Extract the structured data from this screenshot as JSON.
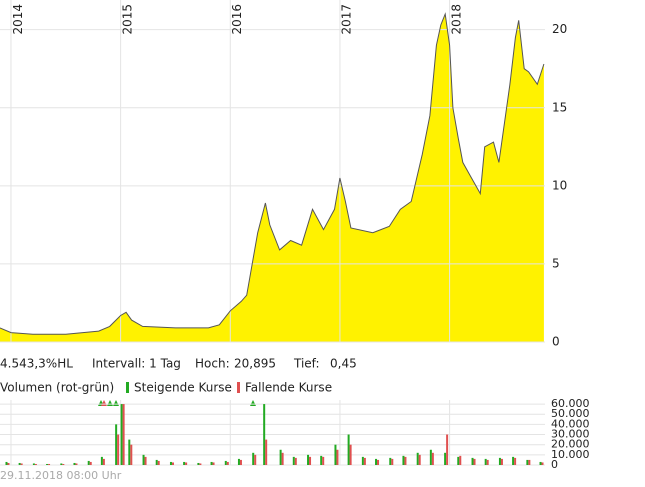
{
  "chart_data": [
    {
      "type": "area",
      "x": [
        2013.9,
        2014.0,
        2014.2,
        2014.5,
        2014.8,
        2014.9,
        2015.0,
        2015.05,
        2015.1,
        2015.2,
        2015.5,
        2015.8,
        2015.9,
        2016.0,
        2016.1,
        2016.15,
        2016.2,
        2016.25,
        2016.32,
        2016.36,
        2016.45,
        2016.55,
        2016.65,
        2016.75,
        2016.85,
        2016.95,
        2017.0,
        2017.05,
        2017.1,
        2017.3,
        2017.45,
        2017.55,
        2017.65,
        2017.75,
        2017.82,
        2017.88,
        2017.92,
        2017.96,
        2018.0,
        2018.03,
        2018.08,
        2018.12,
        2018.2,
        2018.28,
        2018.32,
        2018.4,
        2018.45,
        2018.5,
        2018.55,
        2018.6,
        2018.63,
        2018.68,
        2018.72,
        2018.8,
        2018.86
      ],
      "values": [
        0.9,
        0.6,
        0.5,
        0.5,
        0.7,
        1.0,
        1.7,
        1.9,
        1.4,
        1.0,
        0.9,
        0.9,
        1.1,
        2.0,
        2.6,
        3.0,
        5.0,
        7.0,
        8.9,
        7.5,
        5.9,
        6.5,
        6.2,
        8.5,
        7.2,
        8.5,
        10.5,
        9.0,
        7.3,
        7.0,
        7.4,
        8.5,
        9.0,
        12.0,
        14.5,
        19.0,
        20.3,
        21.0,
        19.0,
        15.0,
        13.0,
        11.5,
        10.5,
        9.5,
        12.5,
        12.8,
        11.5,
        14.0,
        16.5,
        19.5,
        20.6,
        17.5,
        17.3,
        16.5,
        17.8
      ],
      "color": "#fff200",
      "line_color": "#555555",
      "xlim": [
        2013.9,
        2018.87
      ],
      "xticks": [
        2014,
        2015,
        2016,
        2017,
        2018
      ],
      "ylim": [
        0,
        21.9
      ],
      "yticks": [
        0,
        5,
        10,
        15,
        20
      ],
      "grid": true,
      "stats": [
        "4.543,3%HL",
        "Intervall: 1 Tag",
        "Hoch:",
        "20,895",
        "Tief:",
        "0,45"
      ]
    },
    {
      "type": "bar",
      "title": "Volumen (rot-grün)",
      "x": [
        2013.95,
        2014.07,
        2014.2,
        2014.32,
        2014.45,
        2014.57,
        2014.7,
        2014.82,
        2014.95,
        2015.0,
        2015.07,
        2015.2,
        2015.32,
        2015.45,
        2015.57,
        2015.7,
        2015.82,
        2015.95,
        2016.07,
        2016.2,
        2016.3,
        2016.45,
        2016.57,
        2016.7,
        2016.82,
        2016.95,
        2017.07,
        2017.2,
        2017.32,
        2017.45,
        2017.57,
        2017.7,
        2017.82,
        2017.95,
        2018.07,
        2018.2,
        2018.32,
        2018.45,
        2018.57,
        2018.7,
        2018.82
      ],
      "series": [
        {
          "name": "Steigende Kurse",
          "color": "#22aa22",
          "values": [
            3000,
            2000,
            1500,
            1000,
            1500,
            2000,
            4000,
            8000,
            40000,
            60000,
            25000,
            10000,
            5000,
            3000,
            3000,
            2000,
            3000,
            4000,
            6000,
            12000,
            60000,
            15000,
            8000,
            10000,
            9000,
            20000,
            30000,
            8000,
            6000,
            7000,
            9000,
            12000,
            15000,
            12000,
            8000,
            7000,
            6000,
            7000,
            8000,
            5000,
            3000
          ]
        },
        {
          "name": "Fallende Kurse",
          "color": "#e05050",
          "values": [
            2000,
            1500,
            1000,
            1000,
            1000,
            1500,
            3000,
            6000,
            30000,
            60000,
            20000,
            8000,
            4000,
            2500,
            2500,
            1500,
            2500,
            3000,
            5000,
            10000,
            25000,
            12000,
            7000,
            8000,
            8000,
            15000,
            20000,
            7000,
            5000,
            6000,
            8000,
            10000,
            12000,
            30000,
            9000,
            6000,
            5000,
            6000,
            7000,
            5000,
            2500
          ]
        }
      ],
      "xlim": [
        2013.9,
        2018.87
      ],
      "xticks": [
        2014,
        2015,
        2016,
        2017,
        2018
      ],
      "ylim": [
        0,
        64000
      ],
      "yticks": [
        0,
        {
          "value": 10000,
          "label": "10.000"
        },
        {
          "value": 20000,
          "label": "20.000"
        },
        {
          "value": 30000,
          "label": "30.000"
        },
        {
          "value": 40000,
          "label": "40.000"
        },
        {
          "value": 50000,
          "label": "50.000"
        },
        {
          "value": 60000,
          "label": "60.000"
        }
      ],
      "grid": true,
      "footer": "29.11.2018 08:00 Uhr"
    }
  ]
}
